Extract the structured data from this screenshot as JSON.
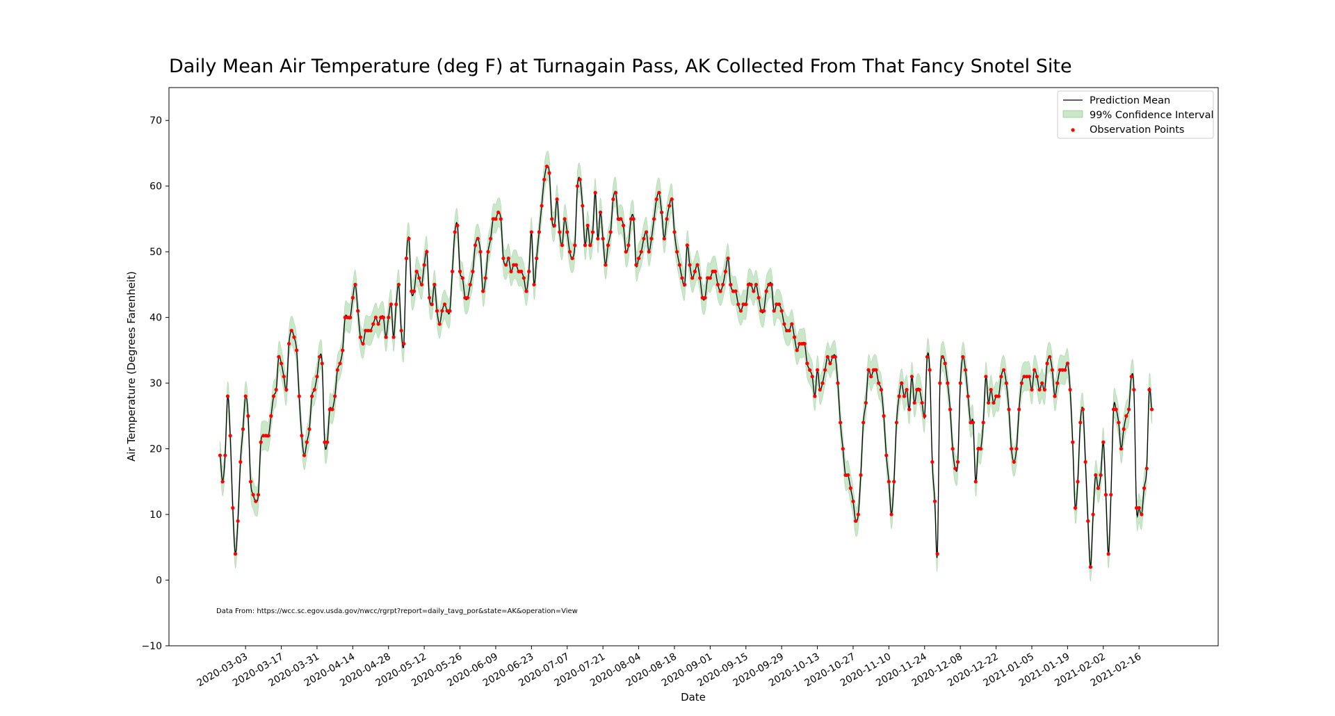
{
  "chart_data": {
    "type": "line",
    "title": "Daily Mean Air Temperature (deg F) at Turnagain Pass, AK Collected From That Fancy Snotel Site",
    "xlabel": "Date",
    "ylabel": "Air Temperature (Degrees Farenheit)",
    "annotation": "Data From:  https://wcc.sc.egov.usda.gov/nwcc/rgrpt?report=daily_tavg_por&state=AK&operation=View",
    "ylim": [
      -10,
      75
    ],
    "yticks": [
      -10,
      0,
      10,
      20,
      30,
      40,
      50,
      60,
      70
    ],
    "x_start_date": "2020-02-22",
    "x_end_date": "2021-02-28",
    "x_range_dates": [
      "2020-02-02",
      "2021-03-19"
    ],
    "xtick_labels": [
      "2020-03-03",
      "2020-03-17",
      "2020-03-31",
      "2020-04-14",
      "2020-04-28",
      "2020-05-12",
      "2020-05-26",
      "2020-06-09",
      "2020-06-23",
      "2020-07-07",
      "2020-07-21",
      "2020-08-04",
      "2020-08-18",
      "2020-09-01",
      "2020-09-15",
      "2020-09-29",
      "2020-10-13",
      "2020-10-27",
      "2020-11-10",
      "2020-11-24",
      "2020-12-08",
      "2020-12-22",
      "2021-01-05",
      "2021-01-19",
      "2021-02-02",
      "2021-02-16"
    ],
    "grid": false,
    "legend_position": "top-right",
    "ci_half_width": 2.2,
    "colors": {
      "mean_line": "#000000",
      "ci_fill": "#2ca02c",
      "observations": "#ff0000"
    },
    "series": [
      {
        "name": "Prediction Mean",
        "kind": "line"
      },
      {
        "name": "99% Confidence Interval",
        "kind": "band"
      },
      {
        "name": "Observation Points",
        "kind": "scatter"
      }
    ],
    "observations": [
      19,
      15,
      19,
      28,
      22,
      11,
      4,
      9,
      18,
      23,
      28,
      25,
      15,
      13,
      12,
      13,
      21,
      22,
      22,
      22,
      25,
      28,
      29,
      34,
      33,
      31,
      29,
      36,
      38,
      37,
      35,
      28,
      22,
      19,
      21,
      23,
      28,
      29,
      31,
      34,
      33,
      21,
      21,
      26,
      26,
      28,
      32,
      33,
      35,
      40,
      40,
      40,
      43,
      45,
      41,
      37,
      36,
      38,
      38,
      38,
      39,
      40,
      39,
      40,
      40,
      37,
      40,
      42,
      37,
      42,
      45,
      38,
      36,
      49,
      52,
      44,
      44,
      47,
      46,
      45,
      48,
      50,
      43,
      42,
      45,
      41,
      39,
      41,
      42,
      41,
      41,
      47,
      53,
      54,
      47,
      46,
      43,
      43,
      45,
      47,
      51,
      52,
      50,
      44,
      46,
      50,
      52,
      55,
      55,
      56,
      55,
      49,
      48,
      49,
      47,
      48,
      48,
      47,
      47,
      46,
      44,
      47,
      53,
      45,
      49,
      53,
      57,
      61,
      63,
      62,
      55,
      54,
      58,
      53,
      51,
      55,
      53,
      50,
      49,
      51,
      60,
      61,
      57,
      51,
      54,
      51,
      53,
      59,
      52,
      56,
      52,
      48,
      51,
      53,
      58,
      59,
      55,
      55,
      54,
      50,
      51,
      55,
      55,
      48,
      49,
      50,
      52,
      53,
      50,
      52,
      55,
      58,
      59,
      56,
      52,
      55,
      57,
      58,
      53,
      50,
      48,
      46,
      45,
      51,
      48,
      46,
      47,
      48,
      46,
      43,
      43,
      46,
      46,
      47,
      47,
      45,
      44,
      45,
      47,
      49,
      45,
      44,
      44,
      42,
      41,
      42,
      42,
      45,
      45,
      44,
      45,
      43,
      41,
      41,
      44,
      45,
      45,
      41,
      42,
      42,
      41,
      39,
      38,
      38,
      39,
      37,
      35,
      36,
      36,
      36,
      33,
      32,
      31,
      28,
      32,
      29,
      30,
      32,
      34,
      33,
      34,
      34,
      30,
      24,
      20,
      16,
      16,
      14,
      12,
      9,
      10,
      16,
      24,
      27,
      32,
      31,
      32,
      32,
      30,
      29,
      25,
      19,
      15,
      10,
      15,
      24,
      28,
      30,
      28,
      29,
      26,
      31,
      27,
      29,
      29,
      27,
      25,
      34,
      32,
      18,
      12,
      4,
      30,
      34,
      33,
      30,
      26,
      20,
      17,
      18,
      30,
      34,
      32,
      28,
      24,
      24,
      15,
      20,
      20,
      24,
      31,
      27,
      29,
      27,
      28,
      28,
      31,
      32,
      30,
      26,
      20,
      18,
      20,
      26,
      30,
      31,
      31,
      31,
      29,
      32,
      31,
      29,
      30,
      29,
      33,
      34,
      32,
      28,
      30,
      32,
      32,
      32,
      33,
      29,
      21,
      11,
      15,
      24,
      26,
      18,
      9,
      2,
      10,
      16,
      14,
      16,
      21,
      13,
      4,
      13,
      26,
      26,
      24,
      20,
      23,
      25,
      26,
      31,
      29,
      11,
      11,
      10,
      14,
      17,
      29,
      26
    ]
  }
}
